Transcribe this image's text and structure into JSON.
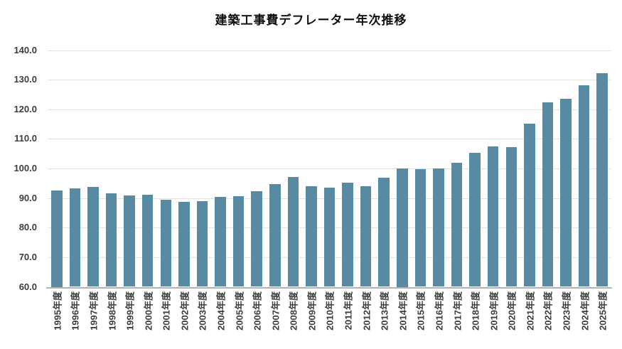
{
  "title": "建築工事費デフレーター年次推移",
  "colors": {
    "bar": "#588ba3",
    "gridline": "#e3e3e3",
    "axis_line": "#b3b3b3",
    "tick_label": "#3d3d3d",
    "title": "#111111",
    "background": "#ffffff"
  },
  "chart_data": {
    "type": "bar",
    "title": "建築工事費デフレーター年次推移",
    "xlabel": "",
    "ylabel": "",
    "ylim": [
      60,
      140
    ],
    "ytick_interval": 10,
    "yticks": [
      "60.0",
      "70.0",
      "80.0",
      "90.0",
      "100.0",
      "110.0",
      "120.0",
      "130.0",
      "140.0"
    ],
    "grid": true,
    "legend": false,
    "categories": [
      "1995年度",
      "1996年度",
      "1997年度",
      "1998年度",
      "1999年度",
      "2000年度",
      "2001年度",
      "2002年度",
      "2003年度",
      "2004年度",
      "2005年度",
      "2006年度",
      "2007年度",
      "2008年度",
      "2009年度",
      "2010年度",
      "2011年度",
      "2012年度",
      "2013年度",
      "2014年度",
      "2015年度",
      "2016年度",
      "2017年度",
      "2018年度",
      "2019年度",
      "2020年度",
      "2021年度",
      "2022年度",
      "2023年度",
      "2024年度",
      "2025年度"
    ],
    "values": [
      92.5,
      93.2,
      93.7,
      91.6,
      90.8,
      91.0,
      89.5,
      88.6,
      89.0,
      90.3,
      90.7,
      92.4,
      94.7,
      97.2,
      93.9,
      93.6,
      95.2,
      94.1,
      96.8,
      100.0,
      99.8,
      99.9,
      101.9,
      105.2,
      107.4,
      107.2,
      115.1,
      122.4,
      123.6,
      128.0,
      132.2
    ]
  }
}
